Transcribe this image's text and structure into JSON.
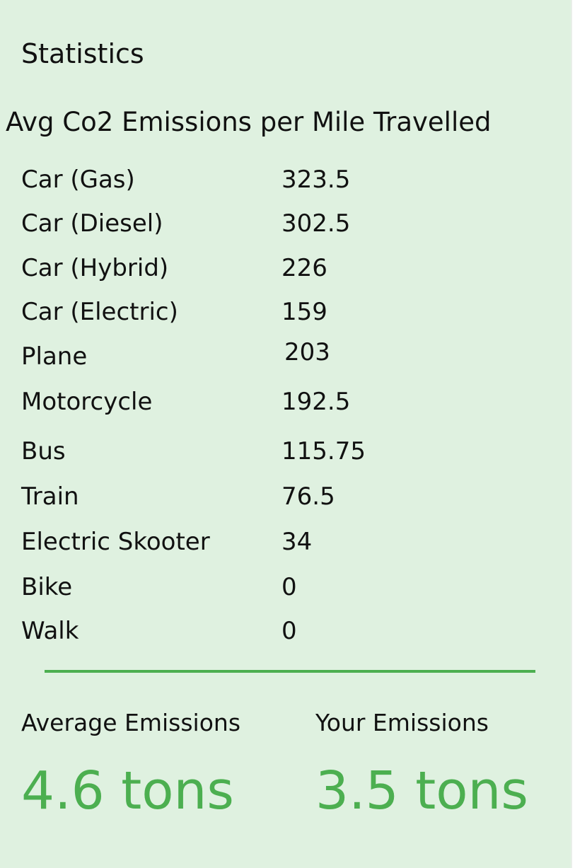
{
  "header": {
    "title": "Statistics",
    "subtitle": "Avg Co2 Emissions per Mile Travelled"
  },
  "emissions": [
    {
      "mode": "Car (Gas)",
      "value": "323.5"
    },
    {
      "mode": "Car (Diesel)",
      "value": "302.5"
    },
    {
      "mode": "Car (Hybrid)",
      "value": "226"
    },
    {
      "mode": "Car (Electric)",
      "value": "159"
    },
    {
      "mode": "Plane",
      "value": "203"
    },
    {
      "mode": "Motorcycle",
      "value": "192.5"
    },
    {
      "mode": "Bus",
      "value": "115.75"
    },
    {
      "mode": "Train",
      "value": "76.5"
    },
    {
      "mode": "Electric Skooter",
      "value": "34"
    },
    {
      "mode": "Bike",
      "value": "0"
    },
    {
      "mode": "Walk",
      "value": "0"
    }
  ],
  "summary": {
    "average_label": "Average Emissions",
    "average_value": "4.6 tons",
    "yours_label": "Your Emissions",
    "yours_value": "3.5 tons"
  },
  "colors": {
    "background": "#dff1e0",
    "accent": "#4caf50"
  }
}
